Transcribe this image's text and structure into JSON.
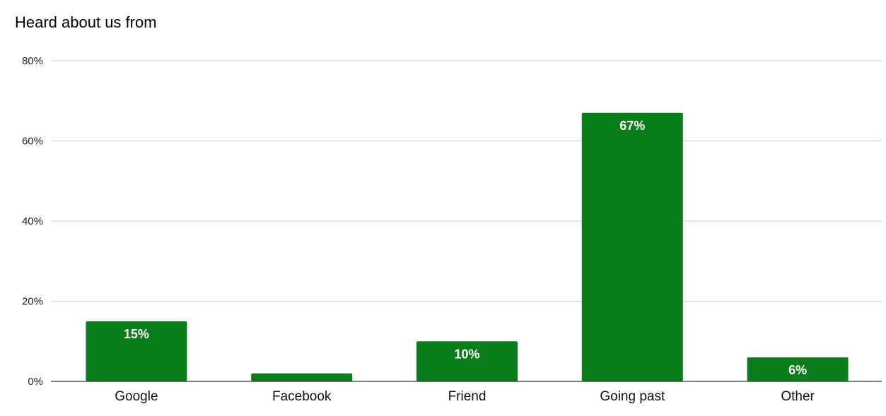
{
  "chart_data": {
    "type": "bar",
    "title": "Heard about us from",
    "categories": [
      "Google",
      "Facebook",
      "Friend",
      "Going past",
      "Other"
    ],
    "values": [
      15,
      2,
      10,
      67,
      6
    ],
    "data_labels": [
      "15%",
      "",
      "10%",
      "67%",
      "6%"
    ],
    "y_ticks": [
      "0%",
      "20%",
      "40%",
      "60%",
      "80%"
    ],
    "ylim": [
      0,
      80
    ],
    "y_unit": "%",
    "xlabel": "",
    "ylabel": "",
    "grid": true,
    "legend": "none",
    "colors": {
      "bar": "#0b7d1b",
      "grid": "#cccccc",
      "axis": "#333333"
    }
  }
}
